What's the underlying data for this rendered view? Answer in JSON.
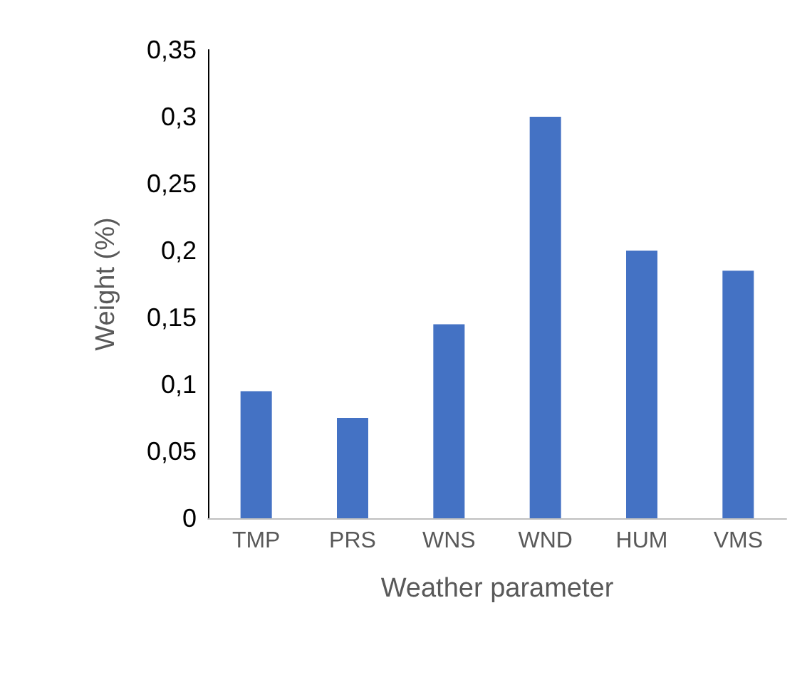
{
  "chart_data": {
    "type": "bar",
    "xlabel": "Weather parameter",
    "ylabel": "Weight (%)",
    "categories": [
      "TMP",
      "PRS",
      "WNS",
      "WND",
      "HUM",
      "VMS"
    ],
    "values": [
      0.095,
      0.075,
      0.145,
      0.3,
      0.2,
      0.185
    ],
    "color": "#4472c4",
    "ylim": [
      0,
      0.35
    ],
    "yticks": [
      {
        "value": 0,
        "label": "0"
      },
      {
        "value": 0.05,
        "label": "0,05"
      },
      {
        "value": 0.1,
        "label": "0,1"
      },
      {
        "value": 0.15,
        "label": "0,15"
      },
      {
        "value": 0.2,
        "label": "0,2"
      },
      {
        "value": 0.25,
        "label": "0,25"
      },
      {
        "value": 0.3,
        "label": "0,3"
      },
      {
        "value": 0.35,
        "label": "0,35"
      }
    ],
    "grid": false
  }
}
